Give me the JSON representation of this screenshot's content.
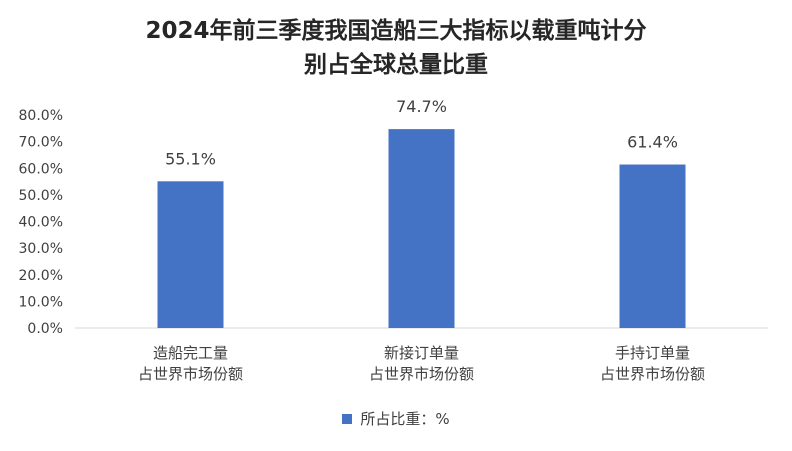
{
  "colors": {
    "bar": "#4472C4",
    "axis": "#d9d9d9",
    "text": "#404040"
  },
  "chart_data": {
    "type": "bar",
    "title_lines": [
      "2024年前三季度我国造船三大指标以载重吨计分",
      "别占全球总量比重"
    ],
    "categories": [
      [
        "造船完工量",
        "占世界市场份额"
      ],
      [
        "新接订单量",
        "占世界市场份额"
      ],
      [
        "手持订单量",
        "占世界市场份额"
      ]
    ],
    "series": [
      {
        "name": "所占比重：%",
        "values": [
          55.1,
          74.7,
          61.4
        ],
        "data_labels": [
          "55.1%",
          "74.7%",
          "61.4%"
        ]
      }
    ],
    "ylim": [
      0,
      80
    ],
    "yticks": [
      0,
      10,
      20,
      30,
      40,
      50,
      60,
      70,
      80
    ],
    "ytick_labels": [
      "0.0%",
      "10.0%",
      "20.0%",
      "30.0%",
      "40.0%",
      "50.0%",
      "60.0%",
      "70.0%",
      "80.0%"
    ],
    "grid": false,
    "legend_position": "bottom"
  }
}
